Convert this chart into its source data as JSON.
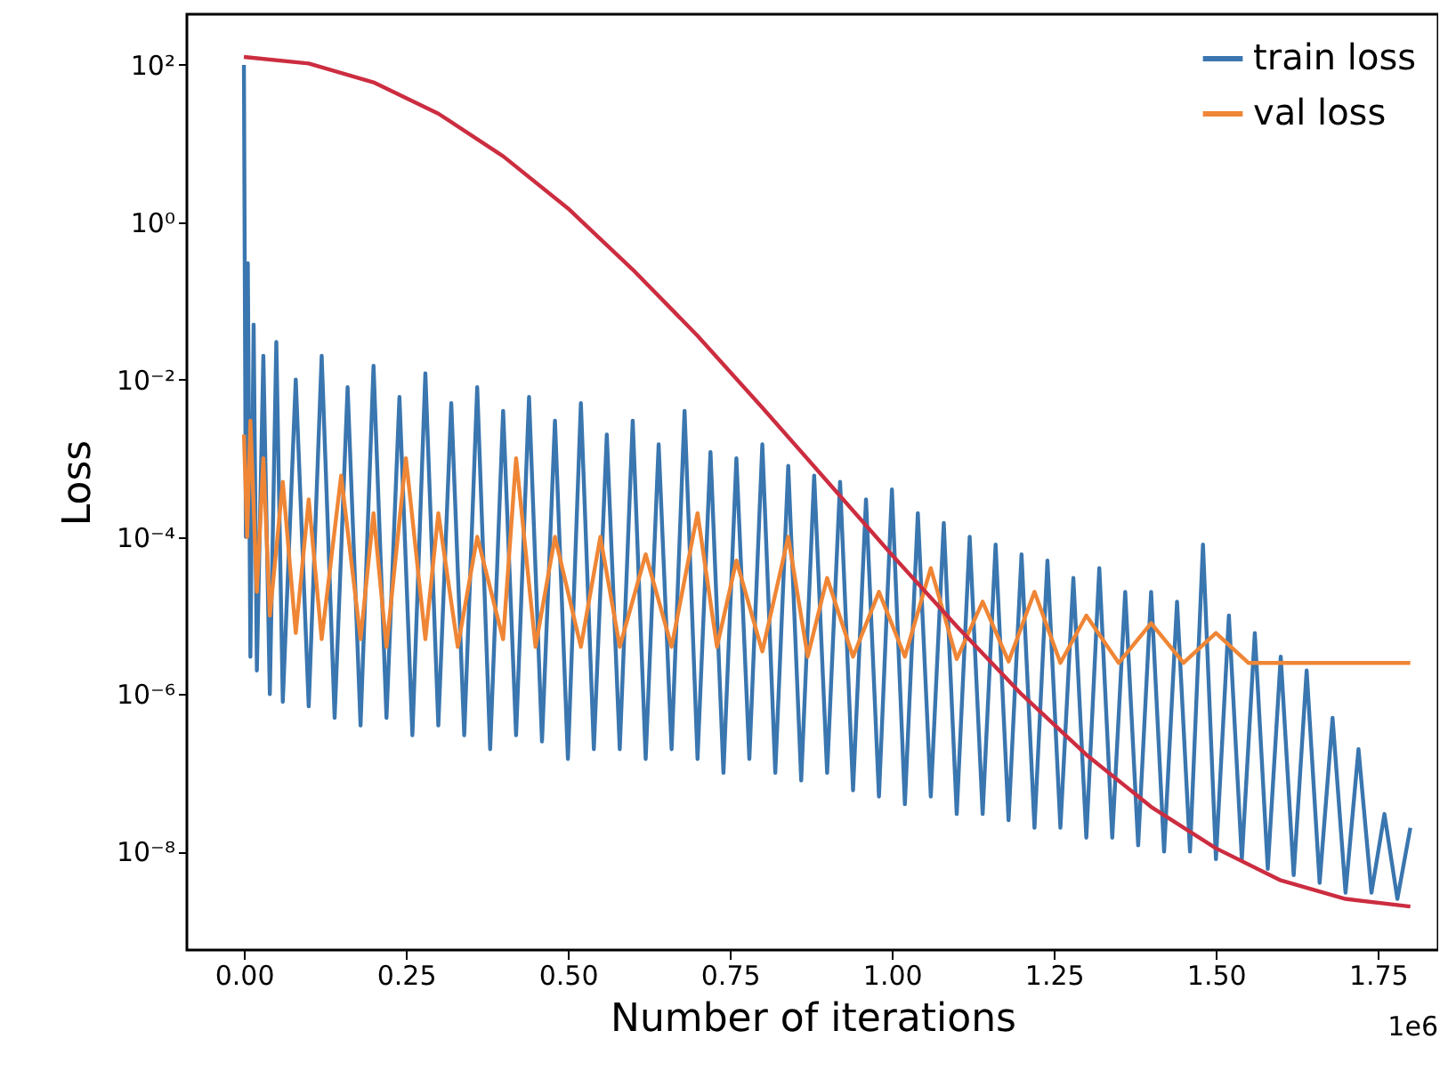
{
  "chart_data": {
    "type": "line",
    "xlabel": "Number of iterations",
    "ylabel": "Loss",
    "log": "y",
    "legend": "top right",
    "grid": false,
    "xlim": [
      -0.088,
      1.843
    ],
    "xticks": [
      {
        "value": 0,
        "label": "0.00"
      },
      {
        "value": 0.25,
        "label": "0.25"
      },
      {
        "value": 0.5,
        "label": "0.50"
      },
      {
        "value": 0.75,
        "label": "0.75"
      },
      {
        "value": 1,
        "label": "1.00"
      },
      {
        "value": 1.25,
        "label": "1.25"
      },
      {
        "value": 1.5,
        "label": "1.50"
      },
      {
        "value": 1.75,
        "label": "1.75"
      }
    ],
    "ylim": [
      5.6e-10,
      440
    ],
    "yticks": [
      {
        "value": 100,
        "label": "10²"
      },
      {
        "value": 1,
        "label": "10⁰"
      },
      {
        "value": 0.01,
        "label": "10⁻²"
      },
      {
        "value": 0.0001,
        "label": "10⁻⁴"
      },
      {
        "value": 1e-06,
        "label": "10⁻⁶"
      },
      {
        "value": 1e-08,
        "label": "10⁻⁸"
      }
    ],
    "annotations": [
      "1e6"
    ],
    "series": [
      {
        "name": "train loss",
        "color": "#3a76af",
        "x": [
          0,
          0.003,
          0.006,
          0.01,
          0.015,
          0.02,
          0.03,
          0.04,
          0.05,
          0.06,
          0.08,
          0.1,
          0.12,
          0.14,
          0.16,
          0.18,
          0.2,
          0.22,
          0.24,
          0.26,
          0.28,
          0.3,
          0.32,
          0.34,
          0.36,
          0.38,
          0.4,
          0.42,
          0.44,
          0.46,
          0.48,
          0.5,
          0.52,
          0.54,
          0.56,
          0.58,
          0.6,
          0.62,
          0.64,
          0.66,
          0.68,
          0.7,
          0.72,
          0.74,
          0.76,
          0.78,
          0.8,
          0.82,
          0.84,
          0.86,
          0.88,
          0.9,
          0.92,
          0.94,
          0.96,
          0.98,
          1,
          1.02,
          1.04,
          1.06,
          1.08,
          1.1,
          1.12,
          1.14,
          1.16,
          1.18,
          1.2,
          1.22,
          1.24,
          1.26,
          1.28,
          1.3,
          1.32,
          1.34,
          1.36,
          1.38,
          1.4,
          1.42,
          1.44,
          1.46,
          1.48,
          1.5,
          1.52,
          1.54,
          1.56,
          1.58,
          1.6,
          1.62,
          1.64,
          1.66,
          1.68,
          1.7,
          1.72,
          1.74,
          1.76,
          1.78,
          1.8
        ],
        "values": [
          100,
          0.0001,
          0.3,
          3e-06,
          0.05,
          2e-06,
          0.02,
          1e-06,
          0.03,
          8e-07,
          0.01,
          7e-07,
          0.02,
          5e-07,
          0.008,
          4e-07,
          0.015,
          5e-07,
          0.006,
          3e-07,
          0.012,
          4e-07,
          0.005,
          3e-07,
          0.008,
          2e-07,
          0.004,
          3e-07,
          0.006,
          2.5e-07,
          0.003,
          1.5e-07,
          0.005,
          2e-07,
          0.002,
          2e-07,
          0.003,
          1.5e-07,
          0.0015,
          2e-07,
          0.004,
          1.5e-07,
          0.0012,
          1e-07,
          0.001,
          1.5e-07,
          0.0015,
          1e-07,
          0.0008,
          8e-08,
          0.0006,
          1e-07,
          0.0005,
          6e-08,
          0.0003,
          5e-08,
          0.0004,
          4e-08,
          0.0002,
          5e-08,
          0.00015,
          3e-08,
          0.0001,
          3e-08,
          8e-05,
          2.5e-08,
          6e-05,
          2e-08,
          5e-05,
          2e-08,
          3e-05,
          1.5e-08,
          4e-05,
          1.5e-08,
          2e-05,
          1.2e-08,
          2e-05,
          1e-08,
          1.5e-05,
          1e-08,
          8e-05,
          8e-09,
          1e-05,
          8e-09,
          6e-06,
          6e-09,
          3e-06,
          5e-09,
          2e-06,
          4e-09,
          5e-07,
          3e-09,
          2e-07,
          3e-09,
          3e-08,
          2.5e-09,
          2e-08
        ]
      },
      {
        "name": "val loss",
        "color": "#ef8636",
        "x": [
          0,
          0.005,
          0.01,
          0.02,
          0.03,
          0.04,
          0.06,
          0.08,
          0.1,
          0.12,
          0.15,
          0.18,
          0.2,
          0.22,
          0.25,
          0.28,
          0.3,
          0.33,
          0.36,
          0.4,
          0.42,
          0.45,
          0.48,
          0.52,
          0.55,
          0.58,
          0.62,
          0.66,
          0.7,
          0.73,
          0.76,
          0.8,
          0.84,
          0.87,
          0.9,
          0.94,
          0.98,
          1.02,
          1.06,
          1.1,
          1.14,
          1.18,
          1.22,
          1.26,
          1.3,
          1.35,
          1.4,
          1.45,
          1.5,
          1.55,
          1.6,
          1.8
        ],
        "values": [
          0.002,
          0.0001,
          0.003,
          2e-05,
          0.001,
          1e-05,
          0.0005,
          6e-06,
          0.0003,
          5e-06,
          0.0006,
          5e-06,
          0.0002,
          4e-06,
          0.001,
          5e-06,
          0.0002,
          4e-06,
          0.0001,
          5e-06,
          0.001,
          4e-06,
          0.0001,
          4e-06,
          0.0001,
          4e-06,
          6e-05,
          4e-06,
          0.0002,
          4e-06,
          5e-05,
          3.5e-06,
          0.0001,
          3e-06,
          3e-05,
          3e-06,
          2e-05,
          3e-06,
          4e-05,
          2.8e-06,
          1.5e-05,
          2.6e-06,
          2e-05,
          2.5e-06,
          1e-05,
          2.5e-06,
          8e-06,
          2.5e-06,
          6e-06,
          2.5e-06,
          2.5e-06,
          2.5e-06
        ]
      },
      {
        "color": "#cc2d40",
        "x": [
          0,
          0.1,
          0.2,
          0.3,
          0.4,
          0.5,
          0.6,
          0.7,
          0.8,
          0.9,
          1,
          1.1,
          1.2,
          1.3,
          1.4,
          1.5,
          1.6,
          1.7,
          1.8
        ],
        "values": [
          126,
          104,
          60,
          24,
          6.9,
          1.5,
          0.25,
          0.036,
          0.0044,
          0.00051,
          5.9e-05,
          7.3e-06,
          1e-06,
          1.7e-07,
          3.7e-08,
          1.1e-08,
          4.3e-09,
          2.5e-09,
          2e-09
        ]
      }
    ]
  }
}
